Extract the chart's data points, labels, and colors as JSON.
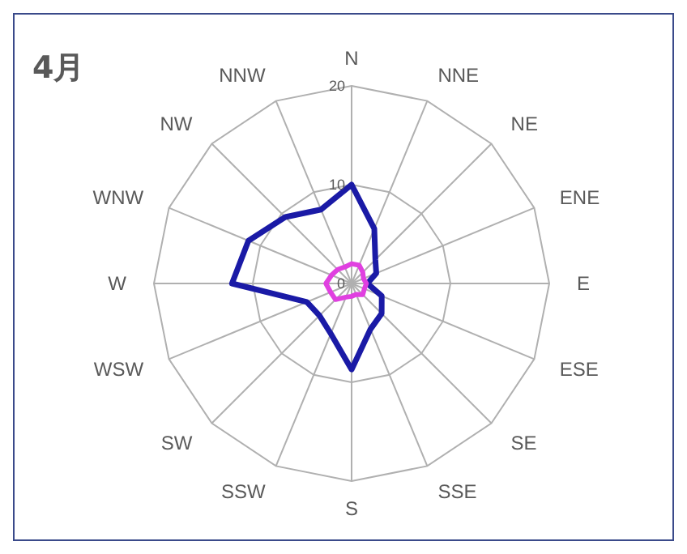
{
  "chart_data": {
    "type": "radar",
    "title": "4月",
    "categories": [
      "N",
      "NNE",
      "NE",
      "ENE",
      "E",
      "ESE",
      "SE",
      "SSE",
      "S",
      "SSW",
      "SW",
      "WSW",
      "W",
      "WNW",
      "NW",
      "NNW"
    ],
    "series": [
      {
        "color": "#1a1aa6",
        "values": [
          10,
          6,
          3.4,
          2.7,
          1.6,
          3.3,
          4.3,
          5,
          8.7,
          5.5,
          4.6,
          4.9,
          12.1,
          11.3,
          9.5,
          8.1
        ]
      },
      {
        "color": "#e040e0",
        "values": [
          2,
          2,
          1.6,
          1.3,
          1.5,
          1.4,
          1.6,
          1.2,
          1.3,
          1.5,
          2.3,
          2.3,
          2.6,
          2.2,
          2,
          1.8
        ]
      }
    ],
    "ylim": [
      0,
      20
    ],
    "yticks": [
      0,
      10,
      20
    ],
    "grid": true
  }
}
